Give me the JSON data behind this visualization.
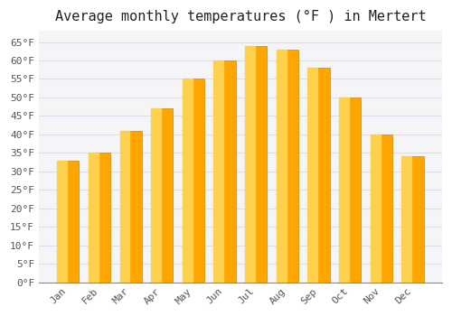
{
  "title": "Average monthly temperatures (°F ) in Mertert",
  "months": [
    "Jan",
    "Feb",
    "Mar",
    "Apr",
    "May",
    "Jun",
    "Jul",
    "Aug",
    "Sep",
    "Oct",
    "Nov",
    "Dec"
  ],
  "values": [
    33,
    35,
    41,
    47,
    55,
    60,
    64,
    63,
    58,
    50,
    40,
    34
  ],
  "bar_color_main": "#FFA500",
  "bar_color_light": "#FFD04B",
  "bar_edge_color": "#CC8800",
  "background_color": "#FFFFFF",
  "plot_bg_color": "#F5F5F8",
  "grid_color": "#DDDDEE",
  "ylim": [
    0,
    68
  ],
  "yticks": [
    0,
    5,
    10,
    15,
    20,
    25,
    30,
    35,
    40,
    45,
    50,
    55,
    60,
    65
  ],
  "ytick_labels": [
    "0°F",
    "5°F",
    "10°F",
    "15°F",
    "20°F",
    "25°F",
    "30°F",
    "35°F",
    "40°F",
    "45°F",
    "50°F",
    "55°F",
    "60°F",
    "65°F"
  ],
  "title_fontsize": 11,
  "tick_fontsize": 8,
  "font_family": "monospace"
}
